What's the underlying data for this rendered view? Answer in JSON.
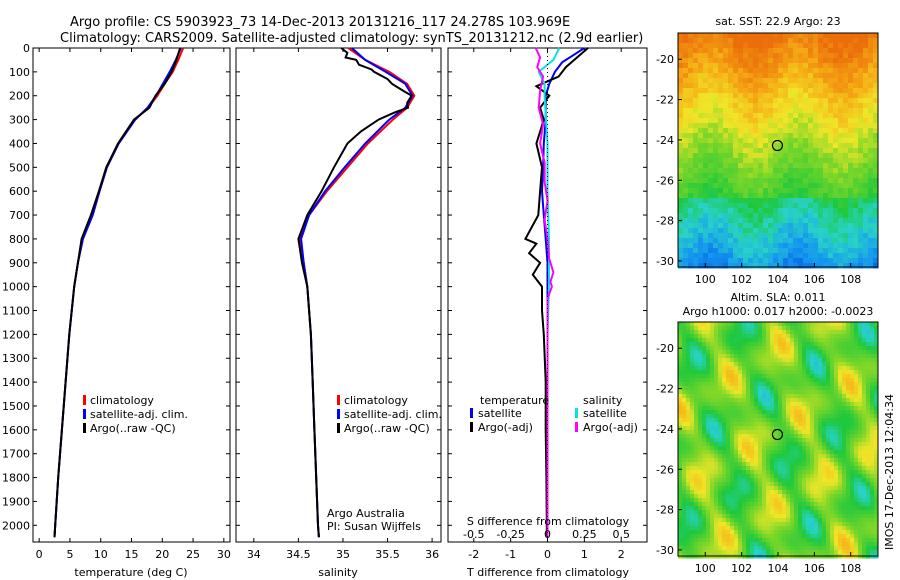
{
  "header": {
    "title_line1": "Argo profile: CS 5903923_73 14-Dec-2013 20131216_117 24.278S 103.969E",
    "title_line2": "Climatology: CARS2009. Satellite-adjusted climatology: synTS_20131212.nc (2.9d earlier)"
  },
  "colors": {
    "climatology": "#ff0000",
    "satellite": "#0000ff",
    "argo": "#000000",
    "sat_salinity": "#00e5e5",
    "argo_salinity": "#ff00ff"
  },
  "chart_data": [
    {
      "type": "line",
      "id": "temperature",
      "xlabel": "temperature (deg C)",
      "ylabel": "",
      "xlim": [
        -1,
        31
      ],
      "ylim": [
        2070,
        0
      ],
      "xticks": [
        "0",
        "5",
        "10",
        "15",
        "20",
        "25",
        "30"
      ],
      "yticks": [
        "0",
        "100",
        "200",
        "300",
        "400",
        "500",
        "600",
        "700",
        "800",
        "900",
        "1000",
        "1100",
        "1200",
        "1300",
        "1400",
        "1500",
        "1600",
        "1700",
        "1800",
        "1900",
        "2000"
      ],
      "legend": {
        "placement": "lower-center",
        "entries": [
          "climatology",
          "satellite-adj. clim.",
          "Argo(..raw -QC)"
        ]
      },
      "series": [
        {
          "name": "climatology",
          "depth": [
            0,
            50,
            100,
            150,
            200,
            250,
            300,
            400,
            500,
            600,
            700,
            800,
            900,
            1000,
            1200,
            1400,
            1600,
            1800,
            2000,
            2050
          ],
          "values": [
            23.4,
            22.6,
            21.7,
            20.4,
            19.2,
            17.7,
            15.6,
            12.9,
            11.0,
            9.8,
            8.7,
            7.1,
            6.3,
            5.7,
            4.9,
            4.3,
            3.7,
            3.1,
            2.6,
            2.5
          ]
        },
        {
          "name": "satellite-adj. clim.",
          "depth": [
            0,
            50,
            100,
            150,
            200,
            250,
            300,
            400,
            500,
            600,
            700,
            800,
            900,
            1000,
            1200,
            1400,
            1600,
            1800,
            2000,
            2050
          ],
          "values": [
            23.0,
            22.2,
            21.2,
            20.1,
            19.0,
            17.6,
            15.6,
            12.9,
            11.0,
            9.8,
            8.7,
            7.1,
            6.3,
            5.7,
            4.9,
            4.3,
            3.7,
            3.1,
            2.6,
            2.5
          ]
        },
        {
          "name": "Argo(..raw -QC)",
          "depth": [
            0,
            50,
            100,
            150,
            200,
            250,
            300,
            400,
            500,
            600,
            700,
            800,
            900,
            1000,
            1200,
            1400,
            1600,
            1800,
            2000,
            2050
          ],
          "values": [
            22.9,
            22.3,
            21.5,
            20.4,
            18.9,
            17.9,
            15.4,
            12.8,
            10.9,
            9.7,
            8.4,
            6.9,
            6.3,
            5.7,
            4.9,
            4.3,
            3.7,
            3.1,
            2.6,
            2.5
          ]
        }
      ]
    },
    {
      "type": "line",
      "id": "salinity",
      "xlabel": "salinity",
      "ylabel": "",
      "xlim": [
        33.8,
        36.1
      ],
      "ylim": [
        2070,
        0
      ],
      "xticks": [
        "34",
        "34.5",
        "35",
        "35.5",
        "36"
      ],
      "legend": {
        "placement": "lower-center",
        "entries": [
          "climatology",
          "satellite-adj. clim.",
          "Argo(..raw -QC)"
        ]
      },
      "annotation": [
        "Argo Australia",
        "PI: Susan Wijffels"
      ],
      "series": [
        {
          "name": "climatology",
          "depth": [
            0,
            50,
            100,
            150,
            200,
            250,
            300,
            400,
            500,
            600,
            700,
            800,
            900,
            1000,
            1200,
            1400,
            1600,
            1800,
            2000,
            2050
          ],
          "values": [
            35.06,
            35.25,
            35.52,
            35.72,
            35.8,
            35.72,
            35.56,
            35.28,
            35.05,
            34.82,
            34.62,
            34.52,
            34.56,
            34.6,
            34.64,
            34.66,
            34.68,
            34.7,
            34.72,
            34.73
          ]
        },
        {
          "name": "satellite-adj. clim.",
          "depth": [
            0,
            50,
            100,
            150,
            200,
            250,
            300,
            400,
            500,
            600,
            700,
            800,
            900,
            1000,
            1200,
            1400,
            1600,
            1800,
            2000,
            2050
          ],
          "values": [
            35.1,
            35.25,
            35.48,
            35.7,
            35.78,
            35.7,
            35.52,
            35.25,
            35.02,
            34.8,
            34.62,
            34.53,
            34.56,
            34.6,
            34.64,
            34.66,
            34.68,
            34.7,
            34.72,
            34.73
          ]
        },
        {
          "name": "Argo(..raw -QC)",
          "depth": [
            0,
            20,
            40,
            50,
            70,
            90,
            100,
            130,
            150,
            180,
            200,
            230,
            250,
            270,
            300,
            350,
            400,
            500,
            600,
            700,
            800,
            900,
            1000,
            1200,
            1400,
            1600,
            1800,
            2000,
            2050
          ],
          "values": [
            34.98,
            35.05,
            35.03,
            35.15,
            35.18,
            35.32,
            35.35,
            35.5,
            35.55,
            35.68,
            35.77,
            35.72,
            35.73,
            35.58,
            35.4,
            35.2,
            35.05,
            34.9,
            34.76,
            34.6,
            34.5,
            34.54,
            34.6,
            34.64,
            34.66,
            34.68,
            34.7,
            34.72,
            34.73
          ]
        }
      ]
    },
    {
      "type": "line",
      "id": "differences",
      "xlabel": "T difference from climatology",
      "top_label": "S difference from climatology",
      "xlim": [
        -2.7,
        2.7
      ],
      "ylim": [
        2070,
        0
      ],
      "xticks": [
        "-2",
        "-1",
        "0",
        "1",
        "2"
      ],
      "top_ticks": [
        "-0.5",
        "-0.25",
        "0",
        "0.25",
        "0.5"
      ],
      "legend": {
        "placement": "lower-center",
        "temperature_header": "temperature",
        "salinity_header": "salinity",
        "entries": [
          "satellite",
          "Argo(-adj)",
          "satellite",
          "Argo(-adj)"
        ]
      },
      "series": [
        {
          "name": "satellite",
          "quantity": "temperature",
          "depth": [
            0,
            30,
            60,
            100,
            150,
            200,
            300,
            400,
            500,
            600,
            700,
            800,
            900,
            1000,
            1200,
            1500,
            2000,
            2050
          ],
          "values": [
            1.0,
            0.7,
            0.4,
            0.2,
            0.05,
            -0.05,
            -0.05,
            -0.1,
            -0.12,
            -0.15,
            -0.1,
            -0.05,
            0.0,
            0.0,
            0.0,
            0.0,
            0.0,
            0.0
          ]
        },
        {
          "name": "Argo(-adj)",
          "quantity": "temperature",
          "depth": [
            0,
            40,
            80,
            120,
            160,
            200,
            250,
            300,
            400,
            500,
            600,
            700,
            800,
            820,
            860,
            900,
            950,
            1000,
            1100,
            1200,
            1400,
            1600,
            1800,
            2000,
            2050
          ],
          "values": [
            1.1,
            0.8,
            0.5,
            0.3,
            -0.3,
            0.05,
            -0.2,
            -0.1,
            -0.3,
            -0.15,
            -0.2,
            -0.25,
            -0.6,
            -0.3,
            -0.5,
            -0.2,
            -0.4,
            -0.15,
            -0.15,
            -0.1,
            -0.05,
            -0.05,
            -0.03,
            -0.02,
            -0.02
          ]
        },
        {
          "name": "satellite",
          "quantity": "salinity",
          "depth": [
            0,
            50,
            100,
            150,
            200,
            300,
            400,
            600,
            800,
            1000,
            1200,
            1500,
            2000,
            2050
          ],
          "values": [
            0.08,
            0.04,
            -0.06,
            -0.02,
            -0.02,
            -0.01,
            0.0,
            0.0,
            0.01,
            0.01,
            0.0,
            0.0,
            0.0,
            0.0
          ]
        },
        {
          "name": "Argo(-adj)",
          "quantity": "salinity",
          "depth": [
            0,
            40,
            80,
            120,
            180,
            250,
            320,
            400,
            480,
            560,
            640,
            720,
            800,
            880,
            940,
            980,
            1000,
            1050,
            1200,
            1400,
            1600,
            1800,
            2000,
            2050
          ],
          "values": [
            -0.08,
            -0.05,
            -0.07,
            -0.03,
            -0.05,
            -0.06,
            -0.03,
            -0.05,
            -0.02,
            -0.02,
            0.0,
            -0.02,
            0.0,
            0.01,
            0.04,
            0.02,
            0.03,
            0.0,
            0.0,
            0.0,
            0.0,
            0.0,
            0.0,
            0.0
          ]
        }
      ]
    },
    {
      "type": "heatmap",
      "id": "sst_map",
      "title": "sat. SST: 22.9 Argo: 23",
      "xlim": [
        98.5,
        109.5
      ],
      "ylim": [
        -30.3,
        -18.7
      ],
      "xticks": [
        "100",
        "102",
        "104",
        "106",
        "108"
      ],
      "yticks": [
        "-20",
        "-22",
        "-24",
        "-26",
        "-28",
        "-30"
      ],
      "marker": {
        "lon": 103.969,
        "lat": -24.278
      }
    },
    {
      "type": "heatmap",
      "id": "sla_map",
      "title_line1": "Altim. SLA: 0.011",
      "title_line2": "Argo h1000: 0.017 h2000: -0.0023",
      "xlim": [
        98.5,
        109.5
      ],
      "ylim": [
        -30.3,
        -18.7
      ],
      "xticks": [
        "100",
        "102",
        "104",
        "106",
        "108"
      ],
      "yticks": [
        "-20",
        "-22",
        "-24",
        "-26",
        "-28",
        "-30"
      ],
      "marker": {
        "lon": 103.969,
        "lat": -24.278
      }
    }
  ],
  "side_stamp": "IMOS 17-Dec-2013 12:04:34"
}
